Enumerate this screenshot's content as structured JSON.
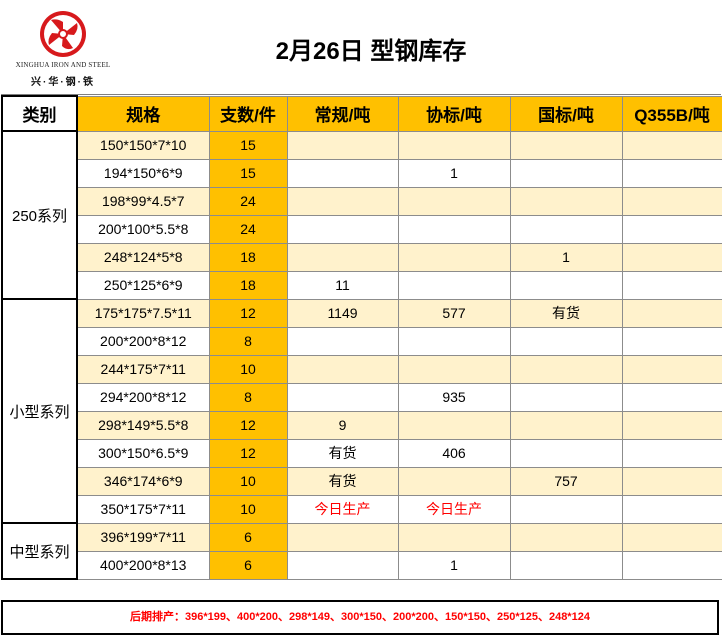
{
  "logo": {
    "english": "XINGHUA IRON AND STEEL",
    "chinese": "兴·华·钢·铁",
    "red": "#d7191c"
  },
  "title": "2月26日 型钢库存",
  "headers": [
    "类别",
    "规格",
    "支数/件",
    "常规/吨",
    "协标/吨",
    "国标/吨",
    "Q355B/吨"
  ],
  "groups": [
    {
      "name": "250系列",
      "rows": [
        {
          "spec": "150*150*7*10",
          "count": "15",
          "changgui": "",
          "xiebiao": "",
          "guobiao": "",
          "q355b": ""
        },
        {
          "spec": "194*150*6*9",
          "count": "15",
          "changgui": "",
          "xiebiao": "1",
          "guobiao": "",
          "q355b": ""
        },
        {
          "spec": "198*99*4.5*7",
          "count": "24",
          "changgui": "",
          "xiebiao": "",
          "guobiao": "",
          "q355b": ""
        },
        {
          "spec": "200*100*5.5*8",
          "count": "24",
          "changgui": "",
          "xiebiao": "",
          "guobiao": "",
          "q355b": ""
        },
        {
          "spec": "248*124*5*8",
          "count": "18",
          "changgui": "",
          "xiebiao": "",
          "guobiao": "1",
          "q355b": ""
        },
        {
          "spec": "250*125*6*9",
          "count": "18",
          "changgui": "11",
          "xiebiao": "",
          "guobiao": "",
          "q355b": ""
        }
      ]
    },
    {
      "name": "小型系列",
      "rows": [
        {
          "spec": "175*175*7.5*11",
          "count": "12",
          "changgui": "1149",
          "xiebiao": "577",
          "guobiao": "有货",
          "q355b": ""
        },
        {
          "spec": "200*200*8*12",
          "count": "8",
          "changgui": "",
          "xiebiao": "",
          "guobiao": "",
          "q355b": ""
        },
        {
          "spec": "244*175*7*11",
          "count": "10",
          "changgui": "",
          "xiebiao": "",
          "guobiao": "",
          "q355b": ""
        },
        {
          "spec": "294*200*8*12",
          "count": "8",
          "changgui": "",
          "xiebiao": "935",
          "guobiao": "",
          "q355b": ""
        },
        {
          "spec": "298*149*5.5*8",
          "count": "12",
          "changgui": "9",
          "xiebiao": "",
          "guobiao": "",
          "q355b": ""
        },
        {
          "spec": "300*150*6.5*9",
          "count": "12",
          "changgui": "有货",
          "xiebiao": "406",
          "guobiao": "",
          "q355b": ""
        },
        {
          "spec": "346*174*6*9",
          "count": "10",
          "changgui": "有货",
          "xiebiao": "",
          "guobiao": "757",
          "q355b": ""
        },
        {
          "spec": "350*175*7*11",
          "count": "10",
          "changgui": "今日生产",
          "xiebiao": "今日生产",
          "guobiao": "",
          "q355b": "",
          "red": true
        }
      ]
    },
    {
      "name": "中型系列",
      "rows": [
        {
          "spec": "396*199*7*11",
          "count": "6",
          "changgui": "",
          "xiebiao": "",
          "guobiao": "",
          "q355b": ""
        },
        {
          "spec": "400*200*8*13",
          "count": "6",
          "changgui": "",
          "xiebiao": "1",
          "guobiao": "",
          "q355b": ""
        }
      ]
    }
  ],
  "footer": "后期排产：396*199、400*200、298*149、300*150、200*200、150*150、250*125、248*124",
  "colors": {
    "gold": "#ffc000",
    "stripe": "#fff2cc",
    "alert": "#ff0000"
  }
}
